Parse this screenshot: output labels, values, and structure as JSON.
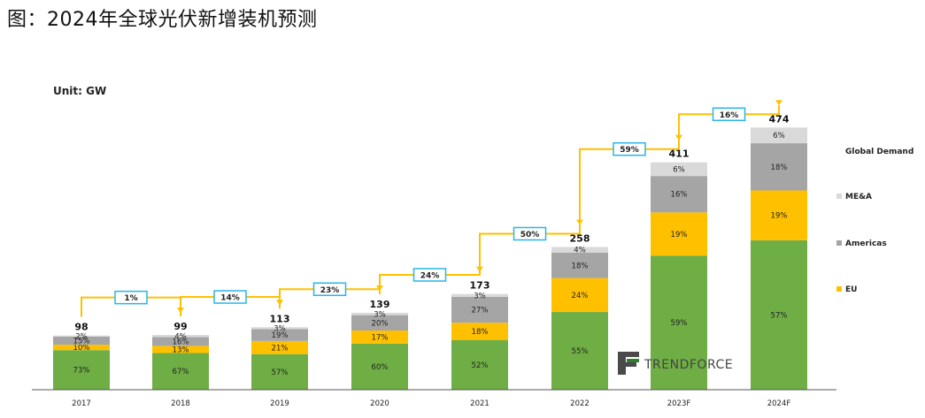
{
  "title": "图：2024年全球光伏新增装机预测",
  "chart_data": {
    "type": "bar",
    "stacked": true,
    "unit_label": "Unit: GW",
    "categories": [
      "2017",
      "2018",
      "2019",
      "2020",
      "2021",
      "2022",
      "2023F",
      "2024F"
    ],
    "totals": [
      98,
      99,
      113,
      139,
      173,
      258,
      411,
      474
    ],
    "series": [
      {
        "name": "",
        "values": [
          "73%",
          "67%",
          "57%",
          "60%",
          "52%",
          "55%",
          "59%",
          "57%"
        ],
        "shares": [
          73,
          67,
          57,
          60,
          52,
          55,
          59,
          57
        ]
      },
      {
        "name": "EU",
        "values": [
          "10%",
          "13%",
          "21%",
          "17%",
          "18%",
          "24%",
          "19%",
          "19%"
        ],
        "shares": [
          10,
          13,
          21,
          17,
          18,
          24,
          19,
          19
        ]
      },
      {
        "name": "Americas",
        "values": [
          "15%",
          "16%",
          "19%",
          "20%",
          "27%",
          "18%",
          "16%",
          "18%"
        ],
        "shares": [
          15,
          16,
          19,
          20,
          27,
          18,
          16,
          18
        ]
      },
      {
        "name": "ME&A",
        "values": [
          "2%",
          "4%",
          "3%",
          "3%",
          "3%",
          "4%",
          "6%",
          "6%"
        ],
        "shares": [
          2,
          4,
          3,
          3,
          3,
          4,
          6,
          6
        ]
      }
    ],
    "growth": [
      "1%",
      "14%",
      "23%",
      "24%",
      "50%",
      "59%",
      "16%"
    ],
    "legend_title": "Global Demand",
    "legend": [
      "ME&A",
      "Americas",
      "EU"
    ],
    "legend_placement": "right",
    "colors": {
      "other": "#6fae45",
      "EU": "#ffc000",
      "Americas": "#a5a5a5",
      "ME&A": "#d9d9d9",
      "arrow": "#ffc000",
      "growth_box": "#29b6e6"
    },
    "grid": false
  },
  "logo": {
    "text": "TRENDFORCE",
    "icon": "trendforce-logo-icon"
  }
}
